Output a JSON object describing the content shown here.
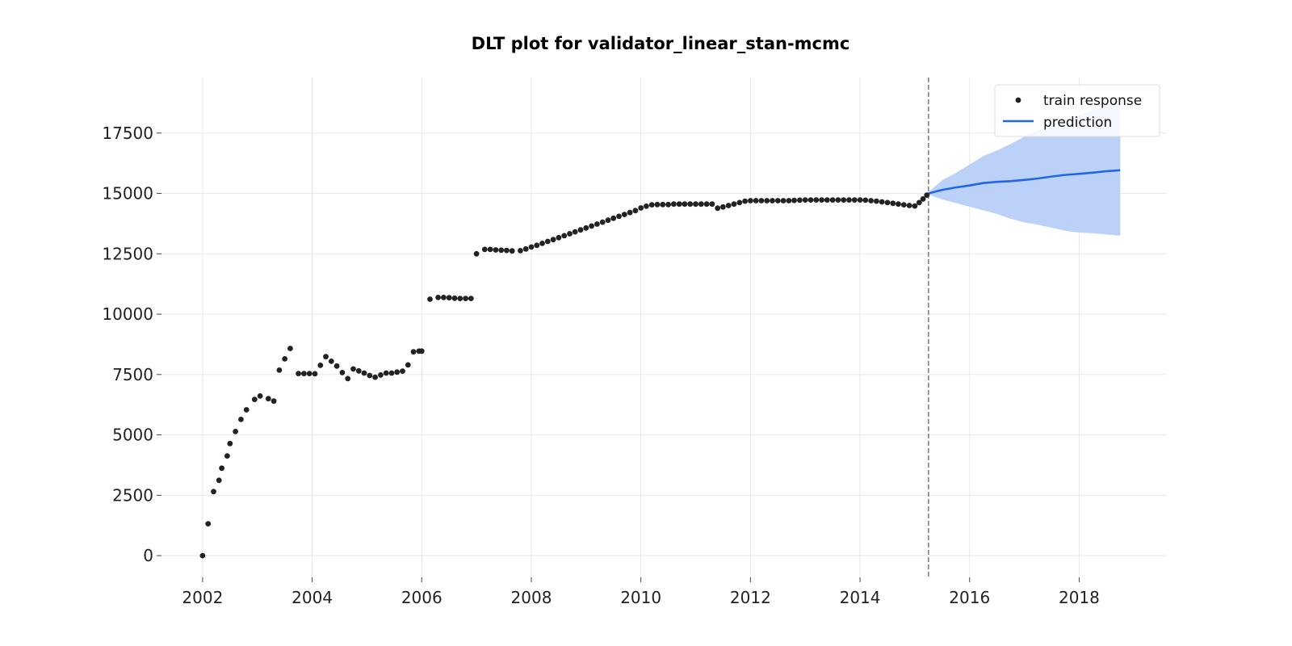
{
  "chart_data": {
    "type": "scatter",
    "title": "DLT plot for validator_linear_stan-mcmc",
    "xlabel": "",
    "ylabel": "",
    "xlim": [
      2001.25,
      2019.6
    ],
    "ylim": [
      -900,
      19800
    ],
    "x_ticks": [
      2002,
      2004,
      2006,
      2008,
      2010,
      2012,
      2014,
      2016,
      2018
    ],
    "y_ticks": [
      0,
      2500,
      5000,
      7500,
      10000,
      12500,
      15000,
      17500
    ],
    "grid": true,
    "legend_position": "top-right",
    "split_x": 2015.25,
    "colors": {
      "train": "#222222",
      "prediction": "#2166e8",
      "interval": "#bcd1f7",
      "split_line": "#666666",
      "grid": "#e8e8e8"
    },
    "series": [
      {
        "name": "train response",
        "kind": "scatter",
        "points": [
          [
            2002.0,
            0
          ],
          [
            2002.1,
            1320
          ],
          [
            2002.2,
            2650
          ],
          [
            2002.3,
            3120
          ],
          [
            2002.35,
            3620
          ],
          [
            2002.45,
            4130
          ],
          [
            2002.5,
            4640
          ],
          [
            2002.6,
            5140
          ],
          [
            2002.7,
            5640
          ],
          [
            2002.8,
            6040
          ],
          [
            2002.95,
            6470
          ],
          [
            2003.05,
            6610
          ],
          [
            2003.2,
            6500
          ],
          [
            2003.3,
            6400
          ],
          [
            2003.4,
            7680
          ],
          [
            2003.5,
            8150
          ],
          [
            2003.6,
            8580
          ],
          [
            2003.75,
            7540
          ],
          [
            2003.85,
            7540
          ],
          [
            2003.95,
            7540
          ],
          [
            2004.05,
            7530
          ],
          [
            2004.15,
            7880
          ],
          [
            2004.25,
            8240
          ],
          [
            2004.35,
            8050
          ],
          [
            2004.45,
            7850
          ],
          [
            2004.55,
            7580
          ],
          [
            2004.65,
            7330
          ],
          [
            2004.75,
            7730
          ],
          [
            2004.85,
            7650
          ],
          [
            2004.95,
            7560
          ],
          [
            2005.05,
            7460
          ],
          [
            2005.15,
            7390
          ],
          [
            2005.25,
            7480
          ],
          [
            2005.35,
            7560
          ],
          [
            2005.45,
            7560
          ],
          [
            2005.55,
            7600
          ],
          [
            2005.65,
            7640
          ],
          [
            2005.75,
            7900
          ],
          [
            2005.85,
            8440
          ],
          [
            2005.95,
            8470
          ],
          [
            2006.0,
            8470
          ],
          [
            2006.15,
            10620
          ],
          [
            2006.3,
            10690
          ],
          [
            2006.4,
            10690
          ],
          [
            2006.5,
            10680
          ],
          [
            2006.6,
            10660
          ],
          [
            2006.7,
            10650
          ],
          [
            2006.8,
            10650
          ],
          [
            2006.9,
            10650
          ],
          [
            2007.0,
            12500
          ],
          [
            2007.15,
            12680
          ],
          [
            2007.25,
            12680
          ],
          [
            2007.35,
            12660
          ],
          [
            2007.45,
            12650
          ],
          [
            2007.55,
            12640
          ],
          [
            2007.65,
            12620
          ],
          [
            2007.8,
            12630
          ],
          [
            2007.9,
            12700
          ],
          [
            2008.0,
            12780
          ],
          [
            2008.1,
            12850
          ],
          [
            2008.2,
            12930
          ],
          [
            2008.3,
            13010
          ],
          [
            2008.4,
            13090
          ],
          [
            2008.5,
            13170
          ],
          [
            2008.6,
            13250
          ],
          [
            2008.7,
            13330
          ],
          [
            2008.8,
            13410
          ],
          [
            2008.9,
            13490
          ],
          [
            2009.0,
            13570
          ],
          [
            2009.1,
            13650
          ],
          [
            2009.2,
            13730
          ],
          [
            2009.3,
            13810
          ],
          [
            2009.4,
            13890
          ],
          [
            2009.5,
            13970
          ],
          [
            2009.6,
            14050
          ],
          [
            2009.7,
            14130
          ],
          [
            2009.8,
            14210
          ],
          [
            2009.9,
            14290
          ],
          [
            2010.0,
            14400
          ],
          [
            2010.1,
            14470
          ],
          [
            2010.2,
            14530
          ],
          [
            2010.3,
            14540
          ],
          [
            2010.4,
            14540
          ],
          [
            2010.5,
            14540
          ],
          [
            2010.6,
            14560
          ],
          [
            2010.7,
            14560
          ],
          [
            2010.8,
            14560
          ],
          [
            2010.9,
            14560
          ],
          [
            2011.0,
            14560
          ],
          [
            2011.1,
            14560
          ],
          [
            2011.2,
            14560
          ],
          [
            2011.3,
            14560
          ],
          [
            2011.4,
            14390
          ],
          [
            2011.5,
            14440
          ],
          [
            2011.6,
            14500
          ],
          [
            2011.7,
            14560
          ],
          [
            2011.8,
            14620
          ],
          [
            2011.9,
            14680
          ],
          [
            2012.0,
            14700
          ],
          [
            2012.1,
            14700
          ],
          [
            2012.2,
            14700
          ],
          [
            2012.3,
            14700
          ],
          [
            2012.4,
            14700
          ],
          [
            2012.5,
            14700
          ],
          [
            2012.6,
            14700
          ],
          [
            2012.7,
            14700
          ],
          [
            2012.8,
            14710
          ],
          [
            2012.9,
            14720
          ],
          [
            2013.0,
            14730
          ],
          [
            2013.1,
            14730
          ],
          [
            2013.2,
            14730
          ],
          [
            2013.3,
            14730
          ],
          [
            2013.4,
            14730
          ],
          [
            2013.5,
            14730
          ],
          [
            2013.6,
            14730
          ],
          [
            2013.7,
            14730
          ],
          [
            2013.8,
            14730
          ],
          [
            2013.9,
            14730
          ],
          [
            2014.0,
            14730
          ],
          [
            2014.1,
            14720
          ],
          [
            2014.2,
            14700
          ],
          [
            2014.3,
            14680
          ],
          [
            2014.4,
            14650
          ],
          [
            2014.5,
            14620
          ],
          [
            2014.6,
            14590
          ],
          [
            2014.7,
            14560
          ],
          [
            2014.8,
            14530
          ],
          [
            2014.9,
            14500
          ],
          [
            2015.0,
            14480
          ],
          [
            2015.08,
            14620
          ],
          [
            2015.15,
            14770
          ],
          [
            2015.22,
            14930
          ]
        ]
      },
      {
        "name": "prediction",
        "kind": "line",
        "points": [
          [
            2015.25,
            15000
          ],
          [
            2015.5,
            15150
          ],
          [
            2015.75,
            15250
          ],
          [
            2016.0,
            15330
          ],
          [
            2016.25,
            15430
          ],
          [
            2016.5,
            15480
          ],
          [
            2016.75,
            15510
          ],
          [
            2017.0,
            15560
          ],
          [
            2017.25,
            15620
          ],
          [
            2017.5,
            15700
          ],
          [
            2017.75,
            15770
          ],
          [
            2018.0,
            15810
          ],
          [
            2018.25,
            15860
          ],
          [
            2018.5,
            15920
          ],
          [
            2018.75,
            15960
          ]
        ]
      },
      {
        "kind": "interval",
        "upper": [
          [
            2015.25,
            15050
          ],
          [
            2015.5,
            15550
          ],
          [
            2015.75,
            15850
          ],
          [
            2016.0,
            16200
          ],
          [
            2016.25,
            16550
          ],
          [
            2016.5,
            16780
          ],
          [
            2016.75,
            17050
          ],
          [
            2017.0,
            17350
          ],
          [
            2017.25,
            17620
          ],
          [
            2017.5,
            17850
          ],
          [
            2017.75,
            18050
          ],
          [
            2018.0,
            18250
          ],
          [
            2018.25,
            18450
          ],
          [
            2018.5,
            18650
          ],
          [
            2018.75,
            18850
          ]
        ],
        "lower": [
          [
            2015.25,
            14950
          ],
          [
            2015.5,
            14750
          ],
          [
            2015.75,
            14600
          ],
          [
            2016.0,
            14450
          ],
          [
            2016.25,
            14300
          ],
          [
            2016.5,
            14150
          ],
          [
            2016.75,
            13950
          ],
          [
            2017.0,
            13800
          ],
          [
            2017.25,
            13700
          ],
          [
            2017.5,
            13580
          ],
          [
            2017.75,
            13450
          ],
          [
            2018.0,
            13380
          ],
          [
            2018.25,
            13350
          ],
          [
            2018.5,
            13300
          ],
          [
            2018.75,
            13250
          ]
        ]
      }
    ]
  }
}
